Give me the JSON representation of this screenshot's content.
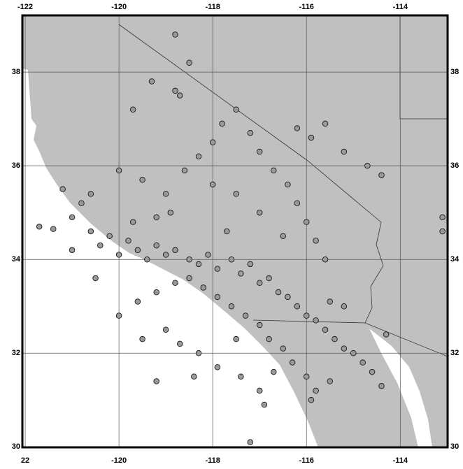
{
  "chart_data": {
    "type": "scatter",
    "xlim": [
      -122.06,
      -112.99
    ],
    "ylim": [
      29.99,
      39.21
    ],
    "xticks": [
      -122,
      -120,
      -118,
      -116,
      -114
    ],
    "xticks_bottom": [
      {
        "value": -122,
        "label": "22"
      },
      -120,
      -118,
      -116,
      -114
    ],
    "yticks": [
      30,
      32,
      34,
      36,
      38
    ],
    "grid": true,
    "series": [
      {
        "color": "#9a9a9a",
        "x": [
          -121.7,
          -121.4,
          -121.0,
          -120.8,
          -120.6,
          -120.4,
          -120.2,
          -120.0,
          -119.8,
          -119.6,
          -119.4,
          -119.2,
          -119.0,
          -118.8,
          -118.5,
          -118.3,
          -118.1,
          -117.9,
          -117.6,
          -117.4,
          -117.2,
          -117.0,
          -116.8,
          -116.6,
          -116.4,
          -116.2,
          -116.0,
          -115.8,
          -115.6,
          -115.4,
          -115.2,
          -115.0,
          -114.8,
          -114.6,
          -115.5,
          -115.8,
          -116.0,
          -116.3,
          -116.5,
          -116.8,
          -117.0,
          -117.3,
          -117.6,
          -117.9,
          -118.2,
          -118.5,
          -118.8,
          -119.2,
          -119.6,
          -119.0,
          -118.7,
          -118.3,
          -117.9,
          -117.4,
          -117.0,
          -116.9,
          -117.2,
          -119.2,
          -120.0,
          -120.5,
          -121.0,
          -120.0,
          -119.5,
          -119.0,
          -118.6,
          -118.3,
          -118.0,
          -117.8,
          -117.5,
          -117.2,
          -117.0,
          -116.7,
          -116.4,
          -116.2,
          -116.0,
          -115.8,
          -115.6,
          -116.5,
          -117.0,
          -117.5,
          -118.0,
          -117.7,
          -116.2,
          -115.9,
          -115.6,
          -115.2,
          -114.7,
          -114.4,
          -118.8,
          -118.7,
          -118.5,
          -118.8,
          -119.3,
          -119.7,
          -120.6,
          -121.2,
          -119.7,
          -119.2,
          -118.9,
          -115.5,
          -115.2,
          -114.3,
          -113.1,
          -113.1,
          -117.5,
          -116.7,
          -118.4,
          -119.5,
          -115.9,
          -114.4
        ],
        "y": [
          34.7,
          34.65,
          34.9,
          35.2,
          34.6,
          34.3,
          34.5,
          34.1,
          34.4,
          34.2,
          34.0,
          34.3,
          34.1,
          34.2,
          34.0,
          33.9,
          34.1,
          33.8,
          34.0,
          33.7,
          33.9,
          33.5,
          33.6,
          33.3,
          33.2,
          33.0,
          32.8,
          32.7,
          32.5,
          32.3,
          32.1,
          32.0,
          31.8,
          31.6,
          31.4,
          31.2,
          31.5,
          31.8,
          32.1,
          32.3,
          32.6,
          32.8,
          33.0,
          33.2,
          33.4,
          33.6,
          33.5,
          33.3,
          33.1,
          32.5,
          32.2,
          32.0,
          31.7,
          31.5,
          31.2,
          30.9,
          30.1,
          31.4,
          32.8,
          33.6,
          34.2,
          35.9,
          35.7,
          35.4,
          35.9,
          36.2,
          36.5,
          36.9,
          37.2,
          36.7,
          36.3,
          35.9,
          35.6,
          35.2,
          34.8,
          34.4,
          34.0,
          34.5,
          35.0,
          35.4,
          35.6,
          34.6,
          36.8,
          36.6,
          36.9,
          36.3,
          36.0,
          35.8,
          37.6,
          37.5,
          38.2,
          38.8,
          37.8,
          37.2,
          35.4,
          35.5,
          34.8,
          34.9,
          35.0,
          33.1,
          33.0,
          32.4,
          34.9,
          34.6,
          32.3,
          31.6,
          31.5,
          32.3,
          31.0,
          31.3
        ]
      }
    ]
  }
}
